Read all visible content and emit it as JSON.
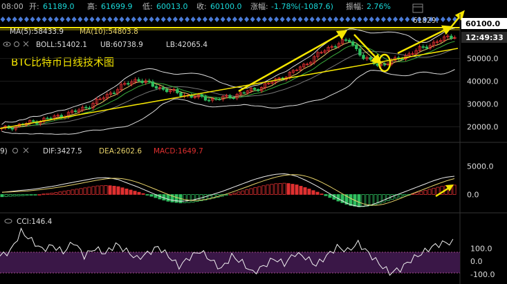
{
  "header": {
    "time": "08:00",
    "open_label": "开:",
    "open": "61189.0",
    "high_label": "高:",
    "high": "61699.9",
    "low_label": "低:",
    "low": "60013.0",
    "close_label": "收:",
    "close": "60100.0",
    "change_label": "涨幅:",
    "change": "-1.78%(-1087.6)",
    "amplitude_label": "振幅:",
    "amplitude": "2.76%"
  },
  "main_panel": {
    "title": "BTC比特币日线技术图",
    "ma5": "MA(5):58433.9",
    "ma10": "MA(10):54803.8",
    "boll": "BOLL:51402.1",
    "ub": "UB:60738.9",
    "lb": "LB:42065.4",
    "peak_label": "61829.",
    "price_badge": "60100.0",
    "time_badge": "12:49:33",
    "y_ticks": [
      "50000.0",
      "40000.0",
      "30000.0",
      "20000.0"
    ]
  },
  "macd_panel": {
    "prefix": "9)",
    "dif": "DIF:3427.5",
    "dea": "DEA:2602.6",
    "macd": "MACD:1649.7",
    "y_ticks": [
      "5000.0",
      "0.0"
    ]
  },
  "cci_panel": {
    "label": "CCI:146.4",
    "y_ticks": [
      "100.0",
      "0.0",
      "-100.0"
    ]
  },
  "chart_data": [
    {
      "type": "candlestick",
      "y_ticks": [
        50000,
        40000,
        30000,
        20000
      ],
      "ylim": [
        15000,
        62000
      ],
      "ohlc_path_close": [
        19000,
        20500,
        22000,
        23500,
        25000,
        27000,
        30000,
        34000,
        38000,
        41000,
        38000,
        36000,
        34000,
        33000,
        32000,
        33000,
        35000,
        37000,
        40000,
        43000,
        47000,
        52000,
        56000,
        58000,
        50000,
        47000,
        49000,
        52000,
        55000,
        58000,
        60100
      ],
      "series": [
        {
          "name": "MA(5)",
          "last": 58433.9
        },
        {
          "name": "MA(10)",
          "last": 54803.8
        },
        {
          "name": "BOLL",
          "last": 51402.1
        },
        {
          "name": "UB",
          "last": 60738.9
        },
        {
          "name": "LB",
          "last": 42065.4
        }
      ],
      "last_close": 60100.0,
      "peak": 61829
    },
    {
      "type": "bar",
      "title": "MACD",
      "y_ticks": [
        5000,
        0
      ],
      "ylim": [
        -2500,
        6500
      ],
      "histogram": [
        -400,
        -300,
        -200,
        -100,
        100,
        300,
        600,
        900,
        1200,
        1500,
        1600,
        1400,
        900,
        400,
        -200,
        -800,
        -1300,
        -1500,
        -1400,
        -1100,
        -700,
        -300,
        200,
        700,
        1200,
        1600,
        1900,
        2000,
        1700,
        1100,
        400,
        -400,
        -1200,
        -1900,
        -2200,
        -2000,
        -1500,
        -900,
        -400,
        100,
        600,
        1100,
        1500,
        1650
      ],
      "dif_last": 3427.5,
      "dea_last": 2602.6,
      "macd_last": 1649.7
    },
    {
      "type": "line",
      "title": "CCI",
      "y_ticks": [
        100,
        0,
        -100
      ],
      "ylim": [
        -160,
        320
      ],
      "values": [
        40,
        80,
        230,
        160,
        90,
        120,
        70,
        150,
        40,
        100,
        60,
        130,
        80,
        20,
        60,
        110,
        40,
        -40,
        30,
        80,
        10,
        -60,
        40,
        -10,
        -90,
        -40,
        20,
        -20,
        60,
        30,
        -30,
        40,
        110,
        80,
        140,
        60,
        -20,
        -90,
        -60,
        10,
        60,
        110,
        140,
        146
      ],
      "last": 146.4
    }
  ]
}
